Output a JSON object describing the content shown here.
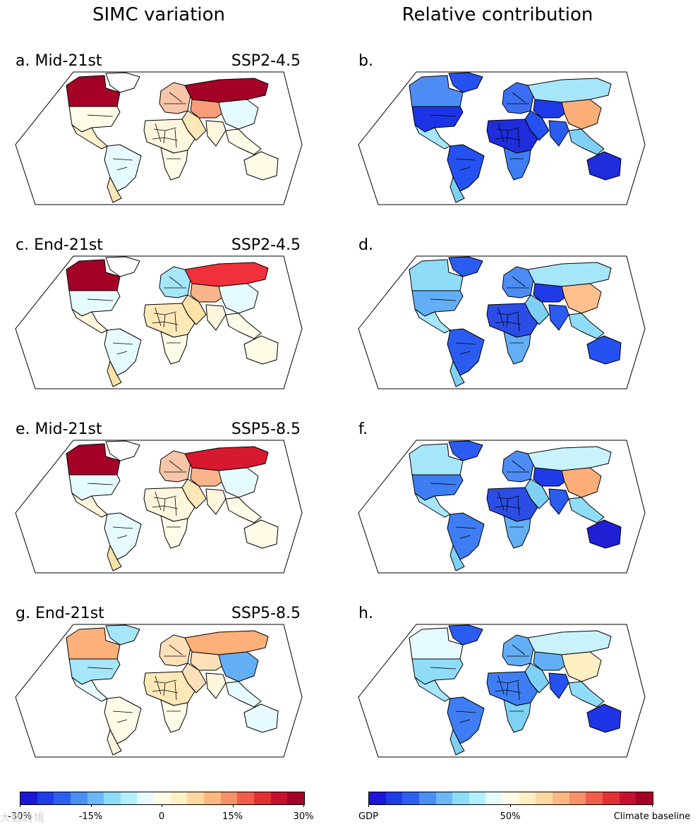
{
  "titles": {
    "left": "SIMC variation",
    "right": "Relative contribution"
  },
  "panels": [
    {
      "id": "a",
      "label": "a. Mid-21st",
      "scenario": "SSP2-4.5",
      "kind": "simc",
      "colors": {
        "canada": "#a50026",
        "usa": "#fffbe6",
        "mexico": "#fff2cc",
        "south_america": "#e6fbff",
        "argentina": "#ffe8b8",
        "greenland": "#ffffff",
        "europe": "#f7c6a8",
        "russia": "#a50026",
        "central_asia": "#f79d7a",
        "china": "#e6fbff",
        "india": "#fff6dd",
        "africa": "#fff6dd",
        "africa_south": "#fffbe6",
        "middle_east": "#ffe8b8",
        "se_asia": "#fffbe6",
        "australia": "#fffbe6"
      }
    },
    {
      "id": "b",
      "label": "b.",
      "scenario": "",
      "kind": "contrib",
      "colors": {
        "canada": "#4e8cf5",
        "usa": "#1c34e6",
        "mexico": "#a6e6fb",
        "south_america": "#2451f0",
        "argentina": "#7fd0f5",
        "greenland": "#2451f0",
        "europe": "#3b6ef2",
        "russia": "#a6e6fb",
        "central_asia": "#1f3be8",
        "china": "#fdae78",
        "india": "#2b5cf0",
        "africa": "#1f2ddc",
        "africa_south": "#3e7df3",
        "middle_east": "#2451f0",
        "se_asia": "#7fd0f5",
        "australia": "#1f2ddc"
      }
    },
    {
      "id": "c",
      "label": "c. End-21st",
      "scenario": "SSP2-4.5",
      "kind": "simc",
      "colors": {
        "canada": "#a50026",
        "usa": "#e6fbff",
        "mexico": "#fff6dd",
        "south_america": "#e6fbff",
        "argentina": "#ffe2a8",
        "greenland": "#ffffff",
        "europe": "#a6e6fb",
        "russia": "#f0303a",
        "central_asia": "#f8b48a",
        "china": "#e6fbff",
        "india": "#fff6dd",
        "africa": "#ffe8b8",
        "africa_south": "#fffbe6",
        "middle_east": "#ffe2a8",
        "se_asia": "#fffbe6",
        "australia": "#fffbe6"
      }
    },
    {
      "id": "d",
      "label": "d.",
      "scenario": "",
      "kind": "contrib",
      "colors": {
        "canada": "#8fdcf8",
        "usa": "#64aef5",
        "mexico": "#a6e6fb",
        "south_america": "#2b5cf0",
        "argentina": "#7fd0f5",
        "greenland": "#2b5cf0",
        "europe": "#4e8cf5",
        "russia": "#a6e6fb",
        "central_asia": "#1f3be8",
        "china": "#fdbf8c",
        "india": "#2b5cf0",
        "africa": "#2b4de6",
        "africa_south": "#64aef5",
        "middle_east": "#7fd0f5",
        "se_asia": "#8fdcf8",
        "australia": "#2451f0"
      }
    },
    {
      "id": "e",
      "label": "e. Mid-21st",
      "scenario": "SSP5-8.5",
      "kind": "simc",
      "colors": {
        "canada": "#a50026",
        "usa": "#e6fbff",
        "mexico": "#fff6dd",
        "south_america": "#e6fbff",
        "argentina": "#ffe2a8",
        "greenland": "#ffffff",
        "europe": "#f7c6a8",
        "russia": "#d6192f",
        "central_asia": "#f8b48a",
        "china": "#e6fbff",
        "india": "#fff6dd",
        "africa": "#fff6dd",
        "africa_south": "#fffbe6",
        "middle_east": "#ffe8b8",
        "se_asia": "#fffbe6",
        "australia": "#fffbe6"
      }
    },
    {
      "id": "f",
      "label": "f.",
      "scenario": "",
      "kind": "contrib",
      "colors": {
        "canada": "#a6e6fb",
        "usa": "#3e7df3",
        "mexico": "#a6e6fb",
        "south_america": "#3e7df3",
        "argentina": "#7fd0f5",
        "greenland": "#2b5cf0",
        "europe": "#4e8cf5",
        "russia": "#c8f3fd",
        "central_asia": "#1f3be8",
        "china": "#fdae78",
        "india": "#2b5cf0",
        "africa": "#2b4de6",
        "africa_south": "#64aef5",
        "middle_east": "#7fd0f5",
        "se_asia": "#8fdcf8",
        "australia": "#1f1fd6"
      }
    },
    {
      "id": "g",
      "label": "g. End-21st",
      "scenario": "SSP5-8.5",
      "kind": "simc",
      "colors": {
        "canada": "#fdb07a",
        "usa": "#a6e6fb",
        "mexico": "#e6fbff",
        "south_america": "#fffbe6",
        "argentina": "#fff6dd",
        "greenland": "#a6e6fb",
        "europe": "#fde0b8",
        "russia": "#fdb07a",
        "central_asia": "#fde0b8",
        "china": "#64aef5",
        "india": "#fff6dd",
        "africa": "#ffe8b8",
        "africa_south": "#fffbe6",
        "middle_east": "#fde0b8",
        "se_asia": "#e6fbff",
        "australia": "#e6fbff"
      }
    },
    {
      "id": "h",
      "label": "h.",
      "scenario": "",
      "kind": "contrib",
      "colors": {
        "canada": "#e6fbff",
        "usa": "#8fdcf8",
        "mexico": "#a6e6fb",
        "south_america": "#3e7df3",
        "argentina": "#7fd0f5",
        "greenland": "#2b5cf0",
        "europe": "#64aef5",
        "russia": "#c8f3fd",
        "central_asia": "#64aef5",
        "china": "#ffefc2",
        "india": "#2451f0",
        "africa": "#3e7df3",
        "africa_south": "#7fd0f5",
        "middle_east": "#7fd0f5",
        "se_asia": "#8fdcf8",
        "australia": "#1f34e6"
      }
    }
  ],
  "colorbars": {
    "simc": {
      "colors": [
        "#1c14d9",
        "#1e3be8",
        "#2b5ff0",
        "#4b8ef5",
        "#6db6f7",
        "#8fdcf8",
        "#b3eefc",
        "#e6fbff",
        "#fffbe6",
        "#ffefc2",
        "#fdd9a0",
        "#fdb882",
        "#f8906a",
        "#f25c4a",
        "#e42f33",
        "#c8102e",
        "#a50026"
      ],
      "ticks": [
        "-30%",
        "-15%",
        "0",
        "15%",
        "30%"
      ]
    },
    "contrib": {
      "colors": [
        "#1c14d9",
        "#1e3be8",
        "#2b5ff0",
        "#4b8ef5",
        "#6db6f7",
        "#8fdcf8",
        "#b3eefc",
        "#e6fbff",
        "#fffbe6",
        "#ffefc2",
        "#fdd9a0",
        "#fdb882",
        "#f8906a",
        "#f25c4a",
        "#e42f33",
        "#c8102e",
        "#a50026"
      ],
      "ticks": [
        "GDP",
        "50%",
        "Climate baseline"
      ]
    }
  },
  "watermark": "大数跨境"
}
